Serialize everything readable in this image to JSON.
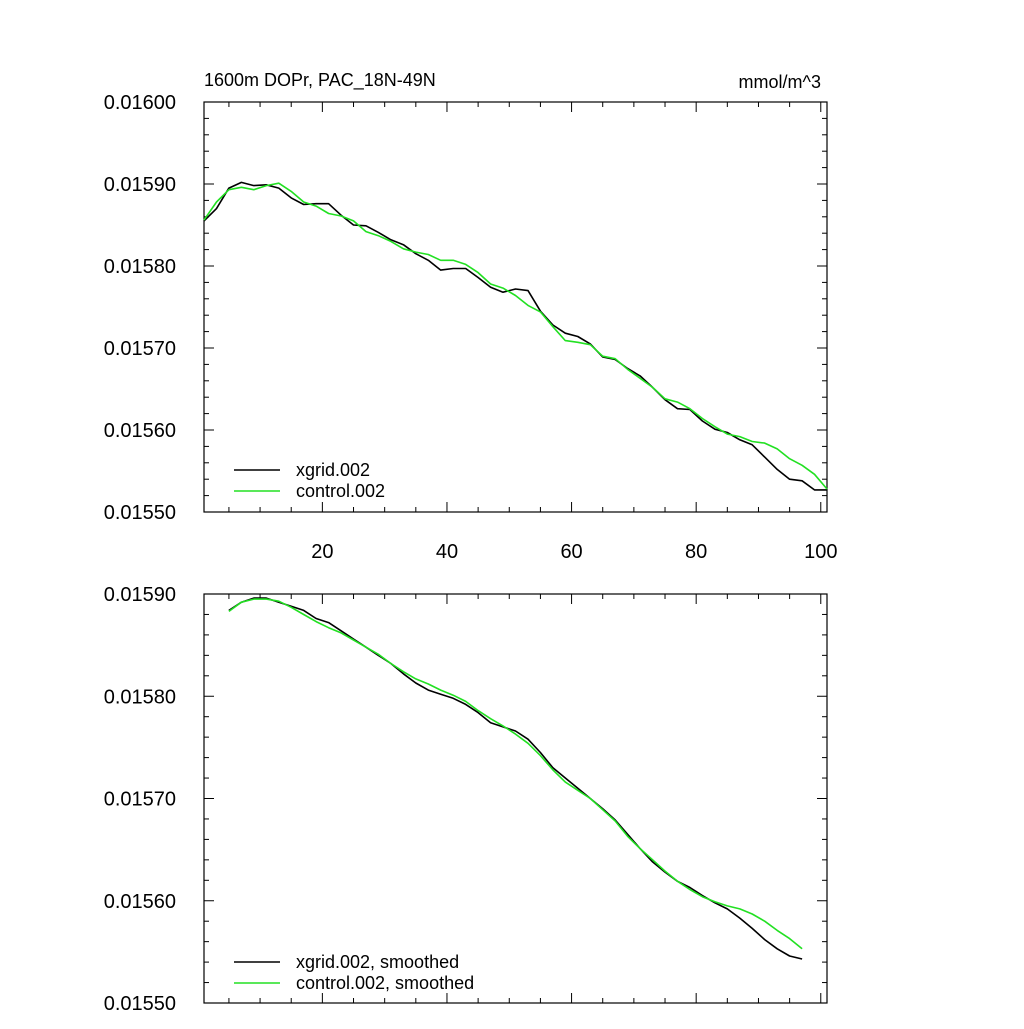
{
  "chart_data": [
    {
      "type": "line",
      "title": "1600m DOPr, PAC_18N-49N",
      "units": "mmol/m^3",
      "xlabel": "",
      "ylabel": "",
      "xlim": [
        1,
        101
      ],
      "ylim": [
        0.0155,
        0.016
      ],
      "x_ticks": [
        20,
        40,
        60,
        80,
        100
      ],
      "x_tick_labels": [
        "20",
        "40",
        "60",
        "80",
        "100"
      ],
      "y_ticks": [
        0.0155,
        0.0156,
        0.0157,
        0.0158,
        0.0159,
        0.016
      ],
      "y_tick_labels": [
        "0.01550",
        "0.01560",
        "0.01570",
        "0.01580",
        "0.01590",
        "0.01600"
      ],
      "grid": false,
      "legend_position": "bottom-left",
      "series": [
        {
          "name": "xgrid.002",
          "color": "#000000",
          "x": [
            1,
            3,
            5,
            7,
            9,
            11,
            13,
            15,
            17,
            19,
            21,
            23,
            25,
            27,
            29,
            31,
            33,
            35,
            37,
            39,
            41,
            43,
            45,
            47,
            49,
            51,
            53,
            55,
            57,
            59,
            61,
            63,
            65,
            67,
            69,
            71,
            73,
            75,
            77,
            79,
            81,
            83,
            85,
            87,
            89,
            91,
            93,
            95,
            97,
            99,
            101
          ],
          "values": [
            0.015855,
            0.01587,
            0.015895,
            0.015902,
            0.015898,
            0.015899,
            0.015895,
            0.015883,
            0.015875,
            0.015876,
            0.015876,
            0.015862,
            0.01585,
            0.015849,
            0.015841,
            0.015832,
            0.015826,
            0.015815,
            0.015807,
            0.015795,
            0.015797,
            0.015797,
            0.015786,
            0.015774,
            0.015768,
            0.015772,
            0.01577,
            0.015745,
            0.015728,
            0.015718,
            0.015714,
            0.015705,
            0.015689,
            0.015686,
            0.015675,
            0.015666,
            0.015652,
            0.015637,
            0.015626,
            0.015625,
            0.015611,
            0.015601,
            0.015597,
            0.015588,
            0.015582,
            0.015567,
            0.015552,
            0.01554,
            0.015538,
            0.015527,
            0.015527
          ]
        },
        {
          "name": "control.002",
          "color": "#22e022",
          "x": [
            1,
            3,
            5,
            7,
            9,
            11,
            13,
            15,
            17,
            19,
            21,
            23,
            25,
            27,
            29,
            31,
            33,
            35,
            37,
            39,
            41,
            43,
            45,
            47,
            49,
            51,
            53,
            55,
            57,
            59,
            61,
            63,
            65,
            67,
            69,
            71,
            73,
            75,
            77,
            79,
            81,
            83,
            85,
            87,
            89,
            91,
            93,
            95,
            97,
            99,
            101
          ],
          "values": [
            0.015856,
            0.015878,
            0.015893,
            0.015896,
            0.015893,
            0.015898,
            0.015901,
            0.015891,
            0.015878,
            0.015873,
            0.015864,
            0.015861,
            0.015855,
            0.015842,
            0.015837,
            0.01583,
            0.015821,
            0.015817,
            0.015814,
            0.015807,
            0.015807,
            0.015802,
            0.015792,
            0.015778,
            0.015773,
            0.015764,
            0.015752,
            0.015744,
            0.015726,
            0.015709,
            0.015707,
            0.015704,
            0.01569,
            0.015687,
            0.015674,
            0.015663,
            0.015652,
            0.015638,
            0.015634,
            0.015626,
            0.015614,
            0.015604,
            0.015595,
            0.015592,
            0.015586,
            0.015584,
            0.015577,
            0.015565,
            0.015557,
            0.015546,
            0.015528
          ]
        }
      ],
      "legend": [
        "xgrid.002",
        "control.002"
      ]
    },
    {
      "type": "line",
      "title": "",
      "xlabel": "",
      "ylabel": "",
      "xlim": [
        1,
        101
      ],
      "ylim": [
        0.0155,
        0.0159
      ],
      "x_ticks": [
        20,
        40,
        60,
        80,
        100
      ],
      "y_ticks": [
        0.0155,
        0.0156,
        0.0157,
        0.0158,
        0.0159
      ],
      "y_tick_labels": [
        "0.01550",
        "0.01560",
        "0.01570",
        "0.01580",
        "0.01590"
      ],
      "grid": false,
      "legend_position": "bottom-left",
      "series": [
        {
          "name": "xgrid.002, smoothed",
          "color": "#000000",
          "x": [
            5,
            7,
            9,
            11,
            13,
            15,
            17,
            19,
            21,
            23,
            25,
            27,
            29,
            31,
            33,
            35,
            37,
            39,
            41,
            43,
            45,
            47,
            49,
            51,
            53,
            55,
            57,
            59,
            61,
            63,
            65,
            67,
            69,
            71,
            73,
            75,
            77,
            79,
            81,
            83,
            85,
            87,
            89,
            91,
            93,
            95,
            97
          ],
          "values": [
            0.015884,
            0.015892,
            0.015896,
            0.015896,
            0.015892,
            0.015888,
            0.015884,
            0.015876,
            0.015872,
            0.015864,
            0.015856,
            0.015848,
            0.01584,
            0.015832,
            0.015822,
            0.015813,
            0.015806,
            0.015802,
            0.015798,
            0.015792,
            0.015784,
            0.015774,
            0.01577,
            0.015766,
            0.015758,
            0.015745,
            0.01573,
            0.01572,
            0.01571,
            0.0157,
            0.01569,
            0.015679,
            0.015665,
            0.015651,
            0.015638,
            0.015628,
            0.015619,
            0.015613,
            0.015605,
            0.015598,
            0.015592,
            0.015583,
            0.015573,
            0.015562,
            0.015553,
            0.015546,
            0.015543
          ]
        },
        {
          "name": "control.002, smoothed",
          "color": "#22e022",
          "x": [
            5,
            7,
            9,
            11,
            13,
            15,
            17,
            19,
            21,
            23,
            25,
            27,
            29,
            31,
            33,
            35,
            37,
            39,
            41,
            43,
            45,
            47,
            49,
            51,
            53,
            55,
            57,
            59,
            61,
            63,
            65,
            67,
            69,
            71,
            73,
            75,
            77,
            79,
            81,
            83,
            85,
            87,
            89,
            91,
            93,
            95,
            97
          ],
          "values": [
            0.015883,
            0.015892,
            0.015895,
            0.015895,
            0.015893,
            0.015887,
            0.01588,
            0.015873,
            0.015867,
            0.015862,
            0.015855,
            0.015848,
            0.015841,
            0.015832,
            0.015824,
            0.015817,
            0.015812,
            0.015806,
            0.015801,
            0.015795,
            0.015786,
            0.015778,
            0.015771,
            0.015763,
            0.015754,
            0.015742,
            0.015728,
            0.015716,
            0.015708,
            0.0157,
            0.015689,
            0.015678,
            0.015663,
            0.015651,
            0.01564,
            0.015629,
            0.015619,
            0.015611,
            0.015604,
            0.015599,
            0.015595,
            0.015592,
            0.015587,
            0.01558,
            0.015571,
            0.015563,
            0.015553
          ]
        }
      ],
      "legend": [
        "xgrid.002, smoothed",
        "control.002, smoothed"
      ]
    }
  ]
}
